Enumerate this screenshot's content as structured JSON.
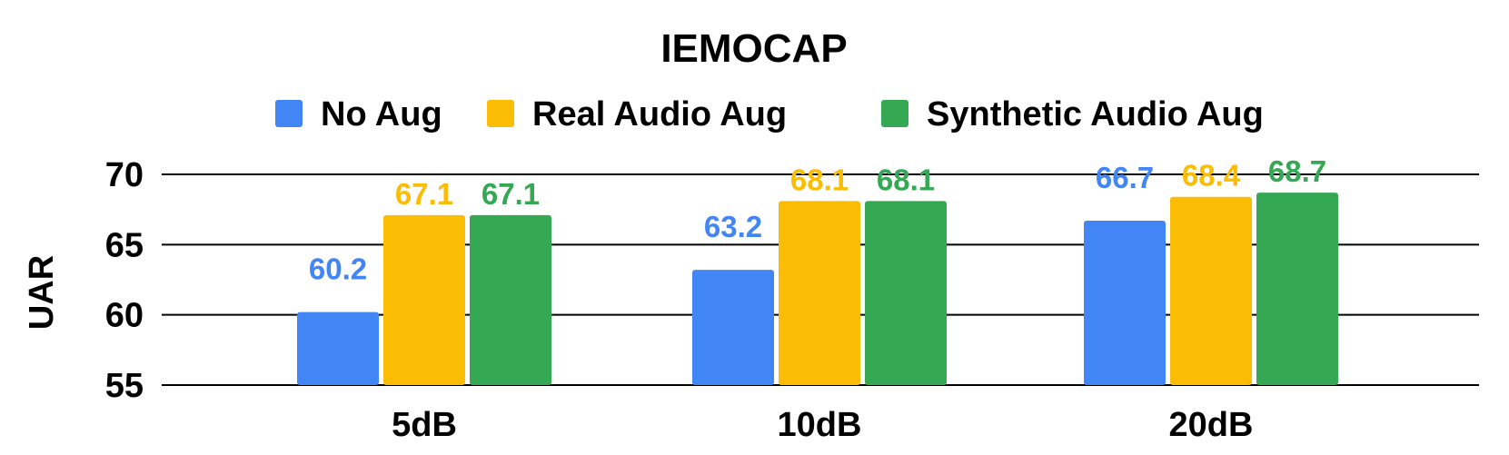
{
  "chart_data": {
    "type": "bar",
    "title": "IEMOCAP",
    "xlabel": "",
    "ylabel": "UAR",
    "categories": [
      "5dB",
      "10dB",
      "20dB"
    ],
    "series": [
      {
        "name": "No Aug",
        "color": "#4285F4",
        "values": [
          60.2,
          63.2,
          66.7
        ],
        "labels": [
          "60.2",
          "63.2",
          "66.7"
        ]
      },
      {
        "name": "Real Audio Aug",
        "color": "#FBBC04",
        "values": [
          67.1,
          68.1,
          68.4
        ],
        "labels": [
          "67.1",
          "68.1",
          "68.4"
        ]
      },
      {
        "name": "Synthetic Audio Aug",
        "color": "#34A853",
        "values": [
          67.1,
          68.1,
          68.7
        ],
        "labels": [
          "67.1",
          "68.1",
          "68.7"
        ]
      }
    ],
    "ylim": [
      55,
      70
    ],
    "yticks": [
      55,
      60,
      65,
      70
    ],
    "ytick_labels": [
      "55",
      "60",
      "65",
      "70"
    ],
    "grid": true,
    "legend_position": "top"
  }
}
